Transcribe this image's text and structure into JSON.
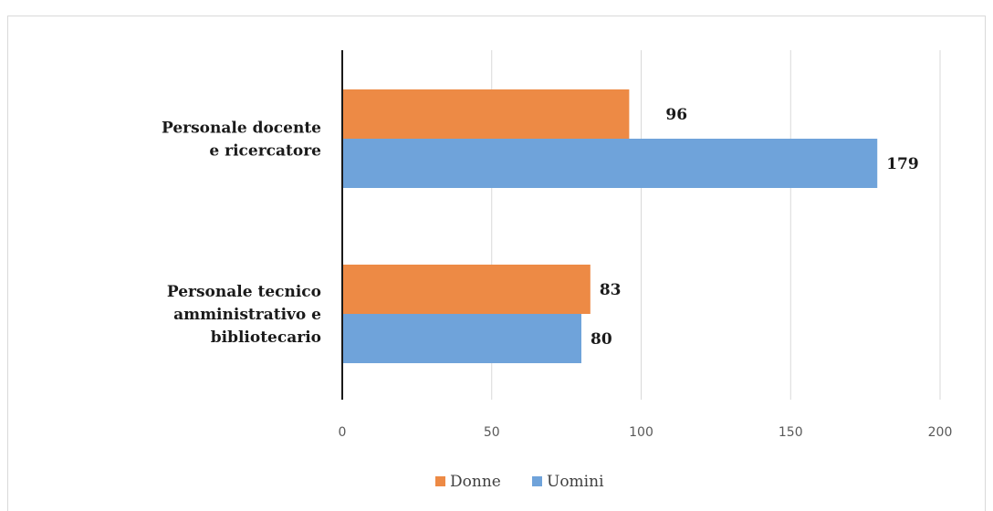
{
  "chart_data": {
    "type": "bar",
    "orientation": "horizontal",
    "categories": [
      [
        "Personale docente",
        "e ricercatore"
      ],
      [
        "Personale tecnico",
        "amministrativo e",
        "bibliotecario"
      ]
    ],
    "series": [
      {
        "name": "Donne",
        "values": [
          96,
          83
        ],
        "color": "#ED8A45"
      },
      {
        "name": "Uomini",
        "values": [
          179,
          80
        ],
        "color": "#6FA3DA"
      }
    ],
    "xlim": [
      0,
      200
    ],
    "xticks": [
      0,
      50,
      100,
      150,
      200
    ],
    "grid": "vertical",
    "legend_position": "bottom",
    "data_labels": true
  }
}
